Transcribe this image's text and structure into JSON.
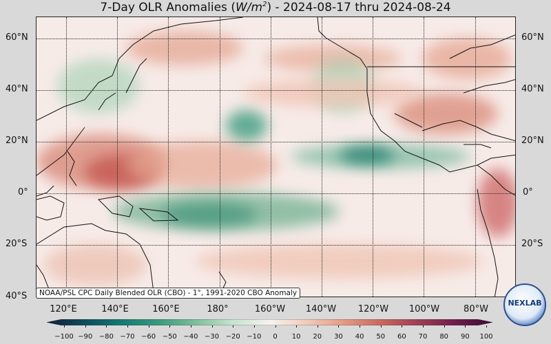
{
  "title": {
    "prefix": "7-Day OLR Anomalies (",
    "unit_base": "W/m",
    "unit_exp": "2",
    "suffix": ") - 2024-08-17 thru 2024-08-24"
  },
  "lat_labels": [
    "60°N",
    "40°N",
    "20°N",
    "0°",
    "20°S",
    "40°S"
  ],
  "lon_labels": [
    "120°E",
    "140°E",
    "160°E",
    "180°",
    "160°W",
    "140°W",
    "120°W",
    "100°W",
    "80°W"
  ],
  "credit": "NOAA/PSL CPC Daily Blended OLR (CBO) - 1°, 1991-2020 CBO Anomaly",
  "colorbar": {
    "ticks": [
      "−100",
      "−90",
      "−80",
      "−70",
      "−60",
      "−50",
      "−40",
      "−30",
      "−20",
      "−10",
      "0",
      "10",
      "20",
      "30",
      "40",
      "50",
      "60",
      "70",
      "80",
      "90",
      "100"
    ],
    "colors": [
      "#0d1f3a",
      "#0e4a5c",
      "#137a72",
      "#3a9a7e",
      "#7cbf9a",
      "#c7e3cf",
      "#f7f2ef",
      "#f2cbb9",
      "#e39a86",
      "#c9685f",
      "#9e3f55",
      "#6e1d4a",
      "#3b0a35"
    ]
  },
  "logo_text": "NEXLAB"
}
